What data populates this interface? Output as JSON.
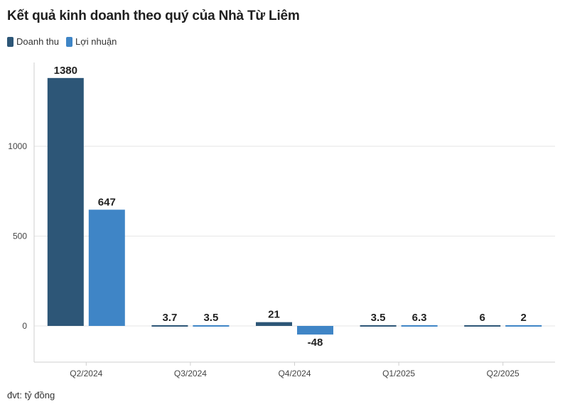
{
  "chart_data": {
    "type": "bar",
    "title": "Kết quả kinh doanh theo quý của Nhà Từ Liêm",
    "categories": [
      "Q2/2024",
      "Q3/2024",
      "Q4/2024",
      "Q1/2025",
      "Q2/2025"
    ],
    "series": [
      {
        "name": "Doanh thu",
        "color": "#2d5677",
        "values": [
          1380,
          3.7,
          21,
          3.5,
          6
        ]
      },
      {
        "name": "Lợi nhuận",
        "color": "#3f85c6",
        "values": [
          647,
          3.5,
          -48,
          6.3,
          2
        ]
      }
    ],
    "data_labels": [
      [
        "1380",
        "3.7",
        "21",
        "3.5",
        "6"
      ],
      [
        "647",
        "3.5",
        "-48",
        "6.3",
        "2"
      ]
    ],
    "yticks": [
      0,
      500,
      1000
    ],
    "ylim": [
      -200,
      1460
    ],
    "grid": true,
    "legend_position": "top-left",
    "note": "đvt: tỷ đồng"
  }
}
